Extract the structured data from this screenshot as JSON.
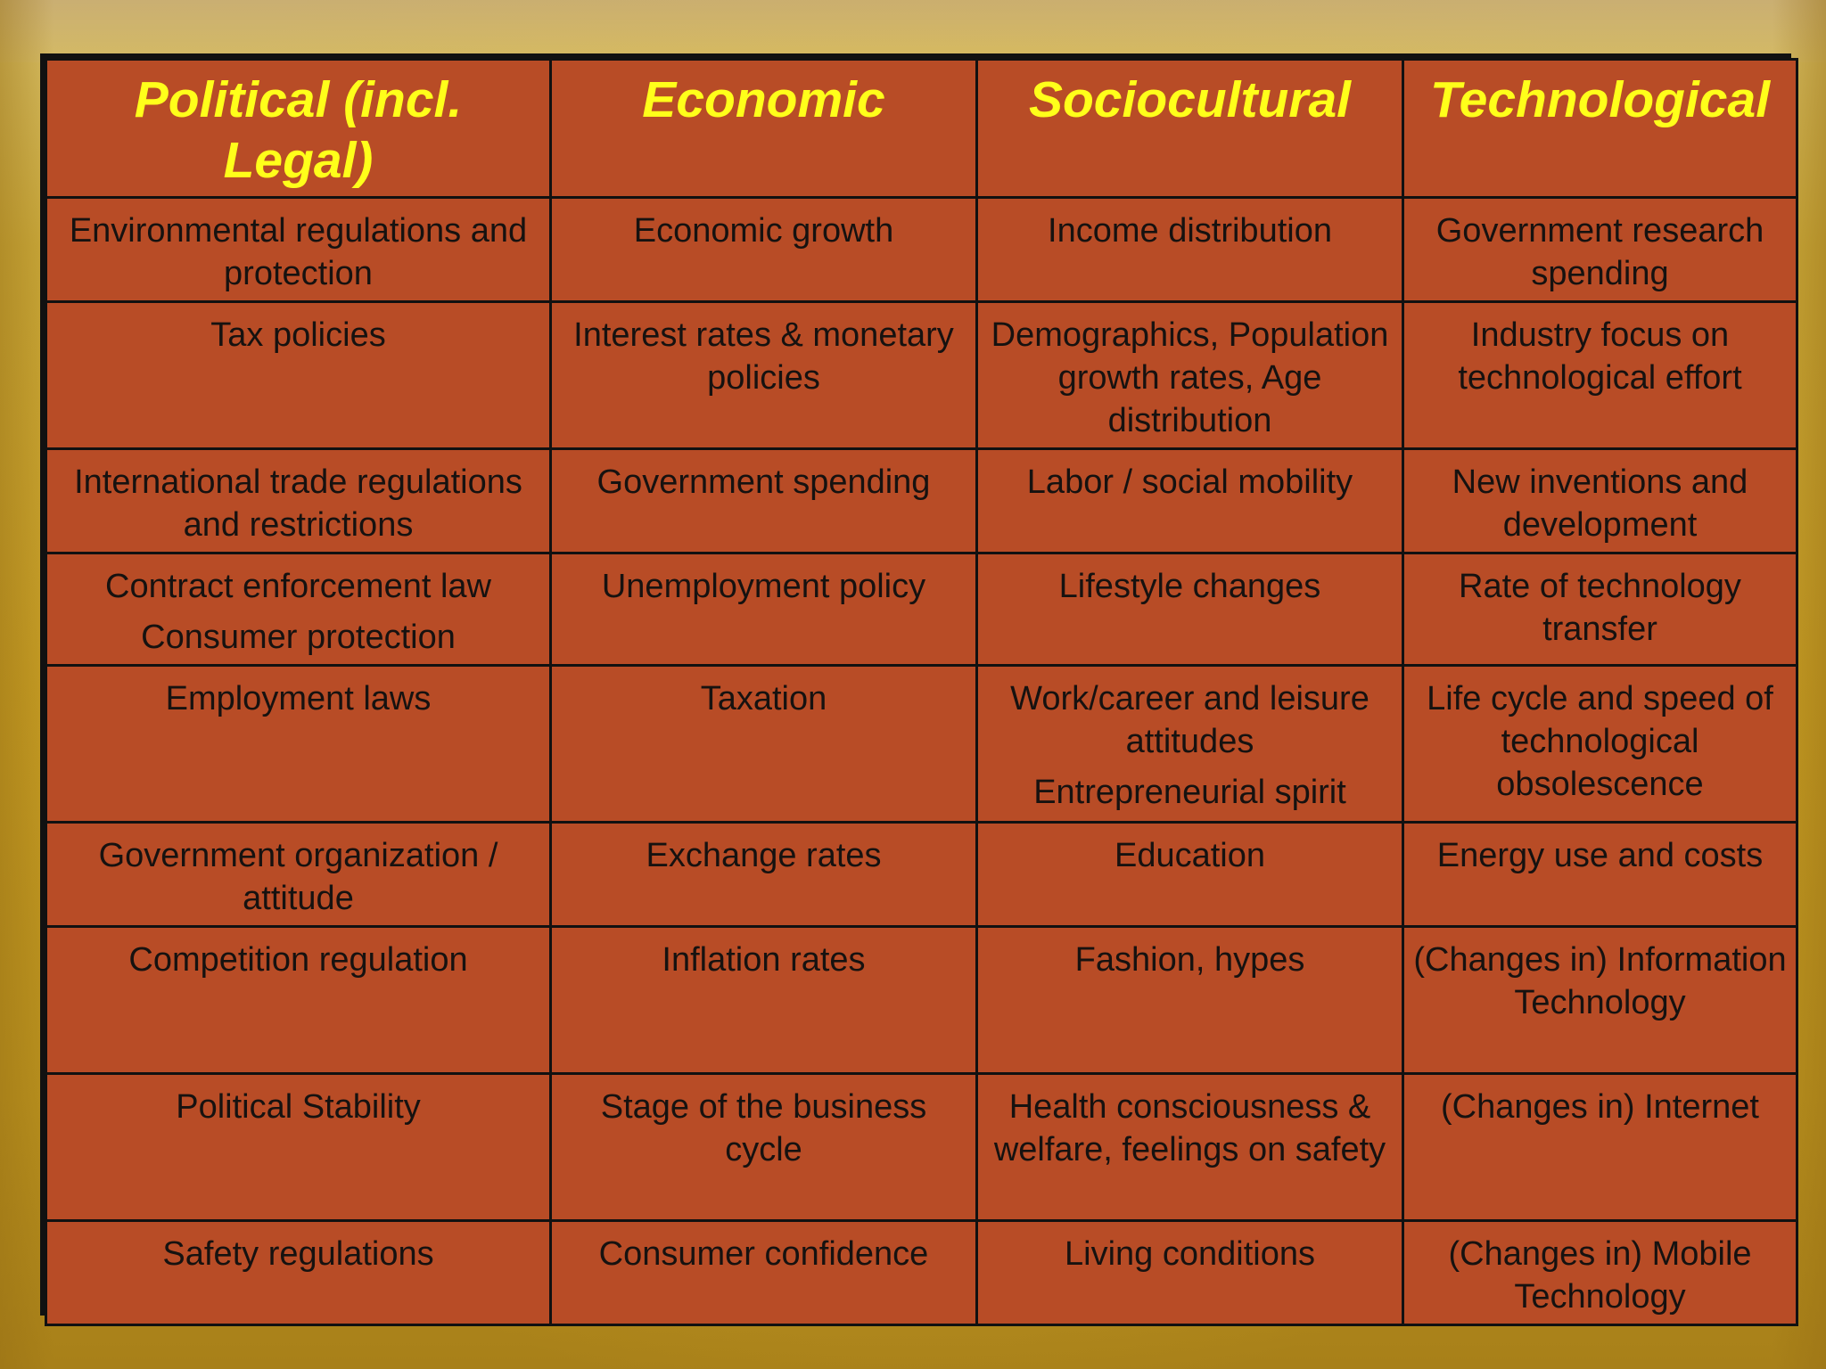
{
  "slide": {
    "headers": [
      "Political (incl. Legal)",
      "Economic",
      "Sociocultural",
      "Technological"
    ],
    "rows": [
      [
        [
          "Environmental regulations and protection"
        ],
        [
          "Economic growth"
        ],
        [
          "Income distribution"
        ],
        [
          "Government research spending"
        ]
      ],
      [
        [
          "Tax policies"
        ],
        [
          "Interest rates & monetary policies"
        ],
        [
          "Demographics, Population growth rates, Age distribution"
        ],
        [
          "Industry focus on technological effort"
        ]
      ],
      [
        [
          "International trade regulations and restrictions"
        ],
        [
          "Government spending"
        ],
        [
          "Labor / social mobility"
        ],
        [
          "New inventions and development"
        ]
      ],
      [
        [
          "Contract enforcement law",
          "Consumer protection"
        ],
        [
          "Unemployment policy"
        ],
        [
          "Lifestyle changes"
        ],
        [
          "Rate of technology transfer"
        ]
      ],
      [
        [
          "Employment laws"
        ],
        [
          "Taxation"
        ],
        [
          "Work/career and leisure attitudes",
          "Entrepreneurial spirit"
        ],
        [
          "Life cycle and speed of technological obsolescence"
        ]
      ],
      [
        [
          "Government organization / attitude"
        ],
        [
          "Exchange rates"
        ],
        [
          "Education"
        ],
        [
          "Energy use and costs"
        ]
      ],
      [
        [
          "Competition regulation"
        ],
        [
          "Inflation rates"
        ],
        [
          "Fashion, hypes"
        ],
        [
          "(Changes in) Information Technology"
        ]
      ],
      [
        [
          "Political Stability"
        ],
        [
          "Stage of the business cycle"
        ],
        [
          "Health consciousness & welfare, feelings on safety"
        ],
        [
          "(Changes in) Internet"
        ]
      ],
      [
        [
          "Safety regulations"
        ],
        [
          "Consumer confidence"
        ],
        [
          "Living conditions"
        ],
        [
          "(Changes in) Mobile Technology"
        ]
      ]
    ]
  },
  "colors": {
    "cell_bg": "#b84c26",
    "header_text": "#ffff1a",
    "body_text": "#161210",
    "border": "#111111"
  }
}
